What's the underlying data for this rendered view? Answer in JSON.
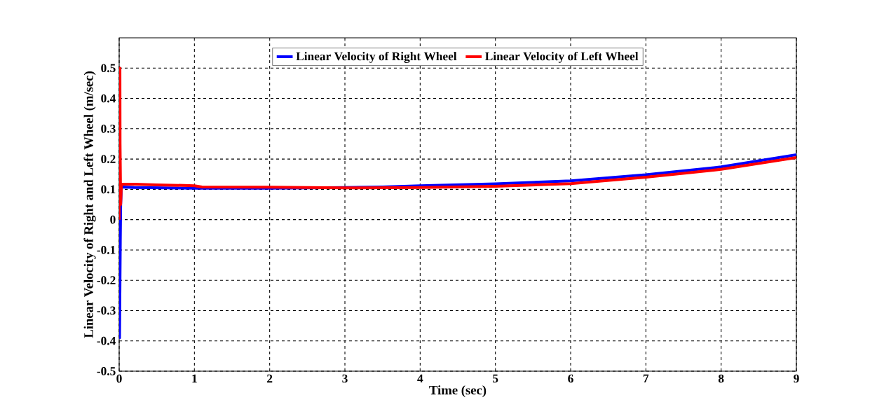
{
  "chart_data": {
    "type": "line",
    "xlabel": "Time (sec)",
    "ylabel": "Linear Velocity of Right and Left Wheel (m/sec)",
    "xlim": [
      0,
      9
    ],
    "ylim": [
      -0.5,
      0.6
    ],
    "xticks": [
      0,
      1,
      2,
      3,
      4,
      5,
      6,
      7,
      8,
      9
    ],
    "yticks": [
      -0.5,
      -0.4,
      -0.3,
      -0.2,
      -0.1,
      0,
      0.1,
      0.2,
      0.3,
      0.4,
      0.5
    ],
    "grid": true,
    "legend": "top",
    "line_style": "solid",
    "marker": "none",
    "series": [
      {
        "name": "Linear Velocity of Right Wheel",
        "color": "#0000ff",
        "x": [
          0,
          0.005,
          0.015,
          0.02,
          0.03,
          0.2,
          1,
          2,
          3,
          3.5,
          4,
          5,
          6,
          7,
          8,
          9
        ],
        "values": [
          0,
          -0.39,
          -0.07,
          0.05,
          0.108,
          0.106,
          0.104,
          0.104,
          0.106,
          0.108,
          0.112,
          0.118,
          0.128,
          0.148,
          0.174,
          0.214
        ]
      },
      {
        "name": "Linear Velocity of Left Wheel",
        "color": "#ff0000",
        "x": [
          0,
          0.003,
          0.01,
          0.012,
          0.02,
          0.03,
          0.2,
          0.5,
          1,
          1.1,
          2,
          3,
          4,
          5,
          6,
          7,
          8,
          9
        ],
        "values": [
          0,
          0.5,
          0.5,
          0.25,
          0.05,
          0.117,
          0.117,
          0.115,
          0.112,
          0.108,
          0.107,
          0.105,
          0.106,
          0.11,
          0.119,
          0.14,
          0.166,
          0.205
        ]
      }
    ]
  }
}
